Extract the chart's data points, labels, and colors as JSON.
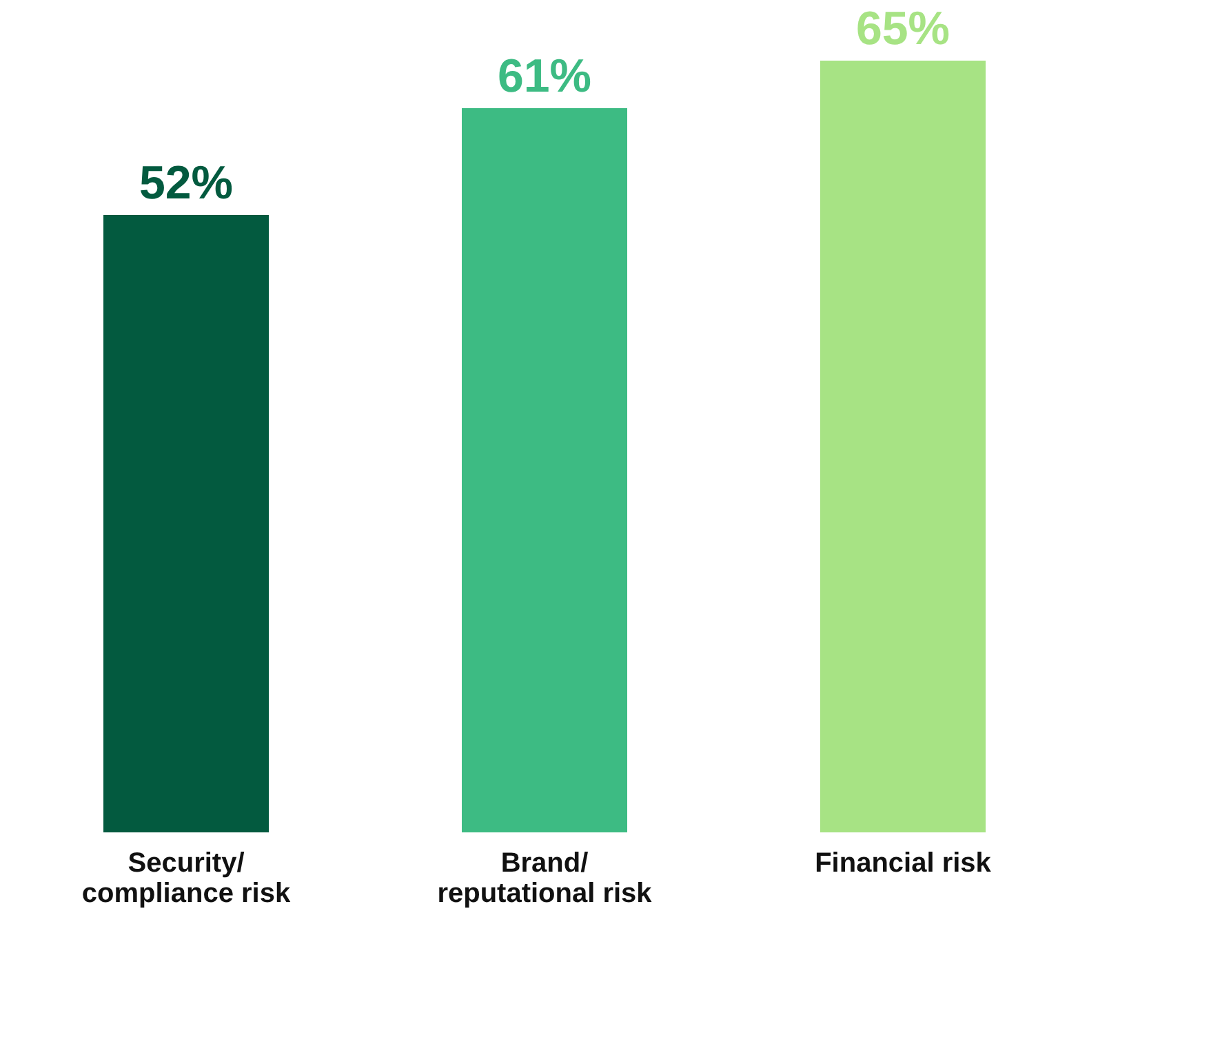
{
  "chart_data": {
    "type": "bar",
    "categories": [
      "Security/\ncompliance risk",
      "Brand/\nreputational risk",
      "Financial risk"
    ],
    "values": [
      52,
      61,
      65
    ],
    "colors": [
      "#035a3f",
      "#3dbb83",
      "#a7e384"
    ],
    "value_labels": [
      "52%",
      "61%",
      "65%"
    ],
    "grid": false,
    "legend": false
  }
}
